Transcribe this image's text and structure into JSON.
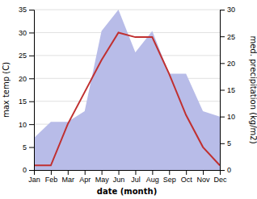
{
  "chart_data": {
    "type": "line",
    "categories": [
      "Jan",
      "Feb",
      "Mar",
      "Apr",
      "May",
      "Jun",
      "Jul",
      "Aug",
      "Sep",
      "Oct",
      "Nov",
      "Dec"
    ],
    "xlabel": "date (month)",
    "ylabel": "max temp (C)",
    "y2label": "med. precipitation (kg/m2)",
    "ylim": [
      0,
      35
    ],
    "yticks": [
      0,
      5,
      10,
      15,
      20,
      25,
      30,
      35
    ],
    "y2lim": [
      0,
      30
    ],
    "y2ticks": [
      0,
      5,
      10,
      15,
      20,
      25,
      30
    ],
    "grid": true,
    "series": [
      {
        "type": "area",
        "axis": "y2",
        "color": "#b8bce8",
        "values": [
          6,
          9,
          9,
          11,
          26,
          30,
          22,
          26,
          18,
          18,
          11,
          10
        ]
      },
      {
        "type": "line",
        "color": "#c03030",
        "values": [
          1,
          1,
          10,
          17,
          24,
          30,
          29,
          29,
          21,
          12,
          5,
          1
        ]
      }
    ]
  }
}
